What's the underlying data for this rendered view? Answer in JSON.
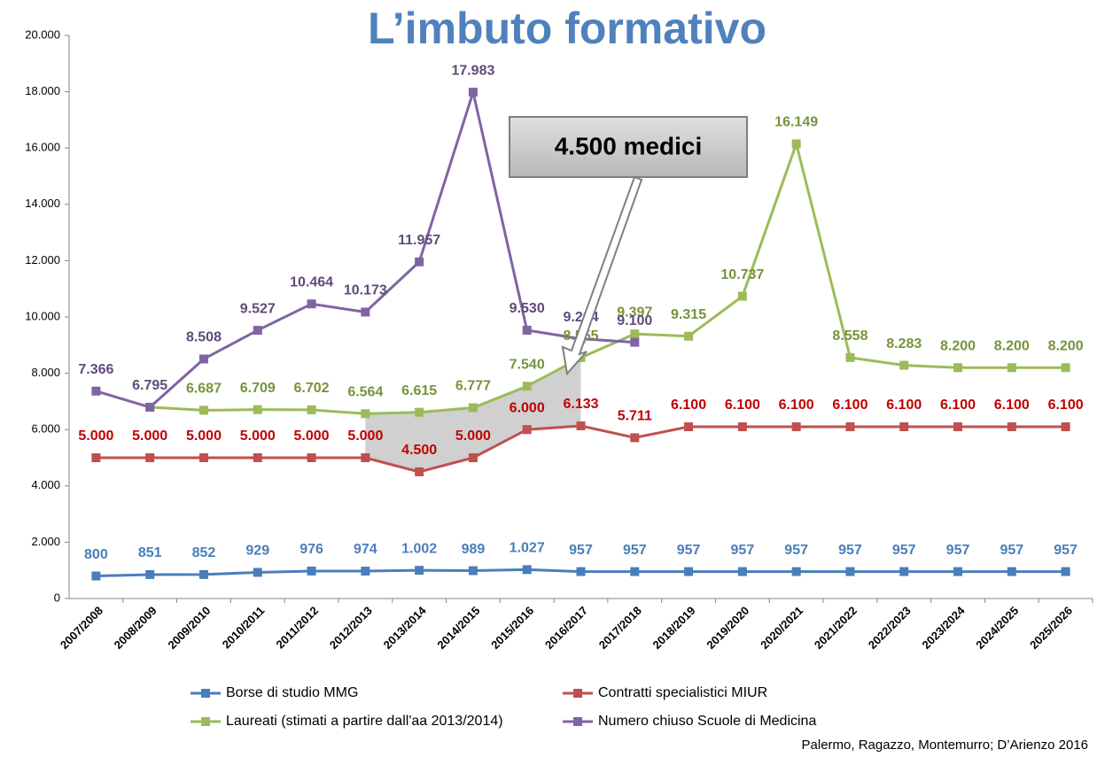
{
  "chart_data": {
    "type": "line",
    "title": "L’imbuto formativo",
    "annotation": "4.500 medici",
    "source": "Palermo, Ragazzo, Montemurro; D’Arienzo 2016",
    "categories": [
      "2007/2008",
      "2008/2009",
      "2009/2010",
      "2010/2011",
      "2011/2012",
      "2012/2013",
      "2013/2014",
      "2014/2015",
      "2015/2016",
      "2016/2017",
      "2017/2018",
      "2018/2019",
      "2019/2020",
      "2020/2021",
      "2021/2022",
      "2022/2023",
      "2023/2024",
      "2024/2025",
      "2025/2026"
    ],
    "ylim": [
      0,
      20000
    ],
    "yticks": [
      0,
      {
        "value": 2000,
        "label": "2.000"
      },
      {
        "value": 4000,
        "label": "4.000"
      },
      {
        "value": 6000,
        "label": "6.000"
      },
      {
        "value": 8000,
        "label": "8.000"
      },
      {
        "value": 10000,
        "label": "10.000"
      },
      {
        "value": 12000,
        "label": "12.000"
      },
      {
        "value": 14000,
        "label": "14.000"
      },
      {
        "value": 16000,
        "label": "16.000"
      },
      {
        "value": 18000,
        "label": "18.000"
      },
      {
        "value": 20000,
        "label": "20.000"
      }
    ],
    "series": [
      {
        "name": "Borse di studio MMG",
        "color": "#4a7ebb",
        "label_color": "#4a7ebb",
        "values": [
          800,
          851,
          852,
          929,
          976,
          974,
          1002,
          989,
          1027,
          957,
          957,
          957,
          957,
          957,
          957,
          957,
          957,
          957,
          957
        ],
        "value_labels": [
          "800",
          "851",
          "852",
          "929",
          "976",
          "974",
          "1.002",
          "989",
          "1.027",
          "957",
          "957",
          "957",
          "957",
          "957",
          "957",
          "957",
          "957",
          "957",
          "957"
        ]
      },
      {
        "name": "Contratti specialistici MIUR",
        "color": "#c0504d",
        "label_color": "#c00000",
        "values": [
          5000,
          5000,
          5000,
          5000,
          5000,
          5000,
          4500,
          5000,
          6000,
          6133,
          5711,
          6100,
          6100,
          6100,
          6100,
          6100,
          6100,
          6100,
          6100
        ],
        "value_labels": [
          "5.000",
          "5.000",
          "5.000",
          "5.000",
          "5.000",
          "5.000",
          "4.500",
          "5.000",
          "6.000",
          "6.133",
          "5.711",
          "6.100",
          "6.100",
          "6.100",
          "6.100",
          "6.100",
          "6.100",
          "6.100",
          "6.100"
        ]
      },
      {
        "name": "Laureati (stimati a partire dall'aa 2013/2014)",
        "color": "#9bbb59",
        "label_color": "#77933c",
        "values": [
          null,
          6795,
          6687,
          6709,
          6702,
          6564,
          6615,
          6777,
          7540,
          8555,
          9397,
          9315,
          10737,
          16149,
          8558,
          8283,
          8200,
          8200,
          8200
        ],
        "value_labels": [
          null,
          null,
          "6.687",
          "6.709",
          "6.702",
          "6.564",
          "6.615",
          "6.777",
          "7.540",
          "8.555",
          "9.397",
          "9.315",
          "10.737",
          "16.149",
          "8.558",
          "8.283",
          "8.200",
          "8.200",
          "8.200"
        ]
      },
      {
        "name": "Numero chiuso Scuole di Medicina",
        "color": "#8064a2",
        "label_color": "#604a7b",
        "values": [
          7366,
          6795,
          8508,
          9527,
          10464,
          10173,
          11957,
          17983,
          9530,
          9224,
          9100,
          null,
          null,
          null,
          null,
          null,
          null,
          null,
          null
        ],
        "value_labels": [
          "7.366",
          "6.795",
          "8.508",
          "9.527",
          "10.464",
          "10.173",
          "11.957",
          "17.983",
          "9.530",
          "9.224",
          "9.100",
          null,
          null,
          null,
          null,
          null,
          null,
          null,
          null
        ]
      }
    ]
  }
}
